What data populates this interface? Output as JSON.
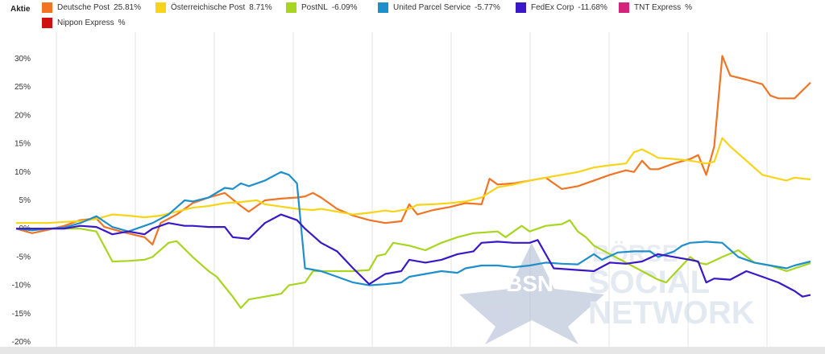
{
  "legend": {
    "title": "Aktie",
    "items": [
      {
        "name": "Deutsche Post",
        "value": "25.81%",
        "color": "#f07424"
      },
      {
        "name": "Österreichische Post",
        "value": "8.71%",
        "color": "#f7d417"
      },
      {
        "name": "PostNL",
        "value": "-6.09%",
        "color": "#a8d520"
      },
      {
        "name": "United Parcel Service",
        "value": "-5.77%",
        "color": "#1f8fcc"
      },
      {
        "name": "FedEx Corp",
        "value": "-11.68%",
        "color": "#3a18c8"
      },
      {
        "name": "TNT Express",
        "value": "%",
        "color": "#d4237a"
      },
      {
        "name": "Nippon Express",
        "value": "%",
        "color": "#d01010"
      }
    ]
  },
  "watermark": {
    "logo_text": "BSN",
    "line1": "BÖRSE",
    "line2": "SOCIAL",
    "line3": "NETWORK"
  },
  "chart_data": {
    "type": "line",
    "title": "",
    "xlabel": "",
    "ylabel": "",
    "ylim": [
      -20,
      35
    ],
    "yticks": [
      -20,
      -15,
      -10,
      -5,
      0,
      5,
      10,
      15,
      20,
      25,
      30
    ],
    "ytick_labels": [
      "-20%",
      "-15%",
      "-10%",
      "-5%",
      "0%",
      "5%",
      "10%",
      "15%",
      "20%",
      "25%",
      "30%"
    ],
    "x_range": [
      0,
      100
    ],
    "grid": "vertical",
    "series": [
      {
        "name": "Deutsche Post",
        "color": "#f07424",
        "points": [
          [
            0,
            0
          ],
          [
            2,
            -0.8
          ],
          [
            4,
            -0.2
          ],
          [
            6,
            0.5
          ],
          [
            8,
            1.5
          ],
          [
            10,
            1.8
          ],
          [
            11,
            0.3
          ],
          [
            13,
            -0.5
          ],
          [
            15,
            -1.2
          ],
          [
            16,
            -1.5
          ],
          [
            17,
            -2.8
          ],
          [
            18,
            1.0
          ],
          [
            20,
            2.5
          ],
          [
            22,
            4.5
          ],
          [
            24,
            5.5
          ],
          [
            26,
            6.3
          ],
          [
            28,
            4.0
          ],
          [
            29,
            3.0
          ],
          [
            30,
            4.0
          ],
          [
            31,
            5.0
          ],
          [
            33,
            5.3
          ],
          [
            35,
            5.5
          ],
          [
            36,
            5.7
          ],
          [
            37,
            6.3
          ],
          [
            38,
            5.5
          ],
          [
            39,
            4.5
          ],
          [
            40,
            3.5
          ],
          [
            42,
            2.3
          ],
          [
            44,
            1.5
          ],
          [
            46,
            1.0
          ],
          [
            48,
            1.3
          ],
          [
            49,
            4.3
          ],
          [
            50,
            2.5
          ],
          [
            52,
            3.3
          ],
          [
            54,
            3.8
          ],
          [
            56,
            4.5
          ],
          [
            58,
            4.3
          ],
          [
            59,
            8.8
          ],
          [
            60,
            7.8
          ],
          [
            62,
            8.0
          ],
          [
            64,
            8.5
          ],
          [
            66,
            9.0
          ],
          [
            67,
            8.0
          ],
          [
            68,
            7.0
          ],
          [
            70,
            7.5
          ],
          [
            72,
            8.5
          ],
          [
            74,
            9.5
          ],
          [
            76,
            10.3
          ],
          [
            77,
            10.0
          ],
          [
            78,
            12.0
          ],
          [
            79,
            10.5
          ],
          [
            80,
            10.5
          ],
          [
            82,
            11.5
          ],
          [
            84,
            12.3
          ],
          [
            85,
            13.0
          ],
          [
            86,
            9.5
          ],
          [
            87,
            14.5
          ],
          [
            88,
            30.5
          ],
          [
            89,
            27.0
          ],
          [
            91,
            26.3
          ],
          [
            93,
            25.5
          ],
          [
            94,
            23.5
          ],
          [
            95,
            23.0
          ],
          [
            96,
            23.0
          ],
          [
            97,
            23.0
          ],
          [
            99,
            25.8
          ]
        ]
      },
      {
        "name": "Österreichische Post",
        "color": "#f7d417",
        "points": [
          [
            0,
            1
          ],
          [
            2,
            1
          ],
          [
            4,
            1
          ],
          [
            6,
            1.2
          ],
          [
            8,
            1.3
          ],
          [
            10,
            1.7
          ],
          [
            12,
            2.5
          ],
          [
            14,
            2.3
          ],
          [
            16,
            2.0
          ],
          [
            18,
            2.3
          ],
          [
            20,
            3.0
          ],
          [
            22,
            3.7
          ],
          [
            24,
            4.0
          ],
          [
            26,
            4.5
          ],
          [
            28,
            4.7
          ],
          [
            30,
            5.0
          ],
          [
            31,
            4.3
          ],
          [
            33,
            3.9
          ],
          [
            35,
            3.5
          ],
          [
            37,
            3.3
          ],
          [
            38,
            3.5
          ],
          [
            40,
            3.0
          ],
          [
            42,
            2.5
          ],
          [
            44,
            2.8
          ],
          [
            46,
            3.2
          ],
          [
            47,
            3.0
          ],
          [
            49,
            3.5
          ],
          [
            50,
            4.2
          ],
          [
            52,
            4.3
          ],
          [
            54,
            4.5
          ],
          [
            56,
            4.8
          ],
          [
            58,
            5.5
          ],
          [
            60,
            7.3
          ],
          [
            62,
            7.8
          ],
          [
            64,
            8.5
          ],
          [
            66,
            9.0
          ],
          [
            68,
            9.5
          ],
          [
            70,
            10.0
          ],
          [
            72,
            10.8
          ],
          [
            74,
            11.2
          ],
          [
            76,
            11.5
          ],
          [
            77,
            13.5
          ],
          [
            78,
            14.0
          ],
          [
            79,
            13.3
          ],
          [
            80,
            12.5
          ],
          [
            82,
            12.3
          ],
          [
            84,
            12.0
          ],
          [
            86,
            11.5
          ],
          [
            87,
            11.8
          ],
          [
            88,
            16.0
          ],
          [
            89,
            14.5
          ],
          [
            91,
            12.0
          ],
          [
            93,
            9.5
          ],
          [
            95,
            8.8
          ],
          [
            96,
            8.5
          ],
          [
            97,
            9.0
          ],
          [
            99,
            8.7
          ]
        ]
      },
      {
        "name": "PostNL",
        "color": "#a8d520",
        "points": [
          [
            0,
            0
          ],
          [
            2,
            0
          ],
          [
            4,
            0
          ],
          [
            6,
            0
          ],
          [
            8,
            0
          ],
          [
            10,
            -0.5
          ],
          [
            12,
            -5.8
          ],
          [
            14,
            -5.7
          ],
          [
            16,
            -5.5
          ],
          [
            17,
            -5.0
          ],
          [
            19,
            -2.5
          ],
          [
            20,
            -2.2
          ],
          [
            22,
            -5.0
          ],
          [
            24,
            -7.5
          ],
          [
            25,
            -8.5
          ],
          [
            27,
            -12.0
          ],
          [
            28,
            -14.0
          ],
          [
            29,
            -12.5
          ],
          [
            31,
            -12.0
          ],
          [
            33,
            -11.5
          ],
          [
            34,
            -10.0
          ],
          [
            36,
            -9.5
          ],
          [
            37,
            -7.5
          ],
          [
            39,
            -7.5
          ],
          [
            42,
            -7.5
          ],
          [
            44,
            -7.3
          ],
          [
            45,
            -4.8
          ],
          [
            46,
            -4.5
          ],
          [
            47,
            -2.5
          ],
          [
            49,
            -3.0
          ],
          [
            51,
            -3.8
          ],
          [
            53,
            -2.5
          ],
          [
            55,
            -1.5
          ],
          [
            57,
            -0.8
          ],
          [
            60,
            -0.5
          ],
          [
            61,
            -1.5
          ],
          [
            62,
            -0.5
          ],
          [
            63,
            0.5
          ],
          [
            64,
            -0.5
          ],
          [
            66,
            0.5
          ],
          [
            68,
            0.8
          ],
          [
            69,
            1.5
          ],
          [
            70,
            -0.5
          ],
          [
            71,
            -1.5
          ],
          [
            72,
            -3.0
          ],
          [
            74,
            -4.5
          ],
          [
            76,
            -6.0
          ],
          [
            78,
            -7.5
          ],
          [
            80,
            -9.0
          ],
          [
            81,
            -9.5
          ],
          [
            82,
            -8.0
          ],
          [
            84,
            -5.0
          ],
          [
            85,
            -6.0
          ],
          [
            86,
            -6.3
          ],
          [
            88,
            -5.0
          ],
          [
            90,
            -3.8
          ],
          [
            92,
            -6.0
          ],
          [
            94,
            -6.5
          ],
          [
            96,
            -7.5
          ],
          [
            99,
            -6.1
          ]
        ]
      },
      {
        "name": "United Parcel Service",
        "color": "#1f8fcc",
        "points": [
          [
            0,
            0
          ],
          [
            2,
            -0.3
          ],
          [
            4,
            0
          ],
          [
            6,
            0.2
          ],
          [
            8,
            1.0
          ],
          [
            10,
            2.2
          ],
          [
            12,
            0.3
          ],
          [
            14,
            -0.5
          ],
          [
            16,
            0.5
          ],
          [
            17,
            1.0
          ],
          [
            19,
            2.5
          ],
          [
            21,
            5.0
          ],
          [
            22,
            4.8
          ],
          [
            24,
            5.5
          ],
          [
            26,
            7.2
          ],
          [
            27,
            7.0
          ],
          [
            28,
            8.0
          ],
          [
            29,
            7.5
          ],
          [
            31,
            8.5
          ],
          [
            33,
            10.0
          ],
          [
            34,
            9.5
          ],
          [
            35,
            8.0
          ],
          [
            36,
            -7.0
          ],
          [
            38,
            -7.5
          ],
          [
            40,
            -8.5
          ],
          [
            42,
            -9.5
          ],
          [
            44,
            -10.0
          ],
          [
            46,
            -9.8
          ],
          [
            48,
            -9.5
          ],
          [
            49,
            -8.5
          ],
          [
            51,
            -8.0
          ],
          [
            53,
            -7.5
          ],
          [
            55,
            -7.8
          ],
          [
            56,
            -7.0
          ],
          [
            58,
            -6.5
          ],
          [
            60,
            -6.5
          ],
          [
            62,
            -6.8
          ],
          [
            64,
            -6.5
          ],
          [
            66,
            -6.0
          ],
          [
            68,
            -6.2
          ],
          [
            70,
            -6.3
          ],
          [
            72,
            -4.5
          ],
          [
            73,
            -5.5
          ],
          [
            75,
            -4.2
          ],
          [
            77,
            -4.0
          ],
          [
            79,
            -4.0
          ],
          [
            80,
            -5.0
          ],
          [
            82,
            -4.0
          ],
          [
            83,
            -3.0
          ],
          [
            84,
            -2.5
          ],
          [
            86,
            -2.3
          ],
          [
            88,
            -2.5
          ],
          [
            90,
            -5.0
          ],
          [
            92,
            -6.0
          ],
          [
            94,
            -6.5
          ],
          [
            96,
            -7.0
          ],
          [
            97,
            -6.5
          ],
          [
            99,
            -5.8
          ]
        ]
      },
      {
        "name": "FedEx Corp",
        "color": "#3a18c8",
        "points": [
          [
            0,
            0
          ],
          [
            2,
            0
          ],
          [
            4,
            0
          ],
          [
            6,
            0
          ],
          [
            8,
            0.5
          ],
          [
            10,
            0.3
          ],
          [
            12,
            -1.0
          ],
          [
            14,
            -0.5
          ],
          [
            16,
            -1.0
          ],
          [
            17,
            0
          ],
          [
            19,
            1.0
          ],
          [
            21,
            0.5
          ],
          [
            22,
            0.5
          ],
          [
            24,
            0.3
          ],
          [
            26,
            0.3
          ],
          [
            27,
            -1.5
          ],
          [
            29,
            -1.8
          ],
          [
            31,
            1.0
          ],
          [
            33,
            2.5
          ],
          [
            35,
            1.5
          ],
          [
            36,
            0
          ],
          [
            38,
            -2.5
          ],
          [
            40,
            -4.0
          ],
          [
            42,
            -7.0
          ],
          [
            44,
            -9.8
          ],
          [
            46,
            -8.0
          ],
          [
            48,
            -7.5
          ],
          [
            49,
            -5.5
          ],
          [
            51,
            -6.0
          ],
          [
            53,
            -5.5
          ],
          [
            55,
            -4.5
          ],
          [
            57,
            -4.0
          ],
          [
            58,
            -2.5
          ],
          [
            60,
            -2.3
          ],
          [
            62,
            -2.5
          ],
          [
            64,
            -2.5
          ],
          [
            65,
            -2.0
          ],
          [
            67,
            -7.0
          ],
          [
            70,
            -7.3
          ],
          [
            72,
            -7.5
          ],
          [
            74,
            -6.0
          ],
          [
            76,
            -6.2
          ],
          [
            78,
            -5.8
          ],
          [
            80,
            -4.5
          ],
          [
            82,
            -5.0
          ],
          [
            84,
            -5.5
          ],
          [
            85,
            -5.8
          ],
          [
            86,
            -9.5
          ],
          [
            87,
            -8.8
          ],
          [
            89,
            -9.0
          ],
          [
            91,
            -7.5
          ],
          [
            93,
            -8.5
          ],
          [
            95,
            -9.5
          ],
          [
            97,
            -11.0
          ],
          [
            98,
            -12.0
          ],
          [
            99,
            -11.7
          ]
        ]
      }
    ]
  }
}
